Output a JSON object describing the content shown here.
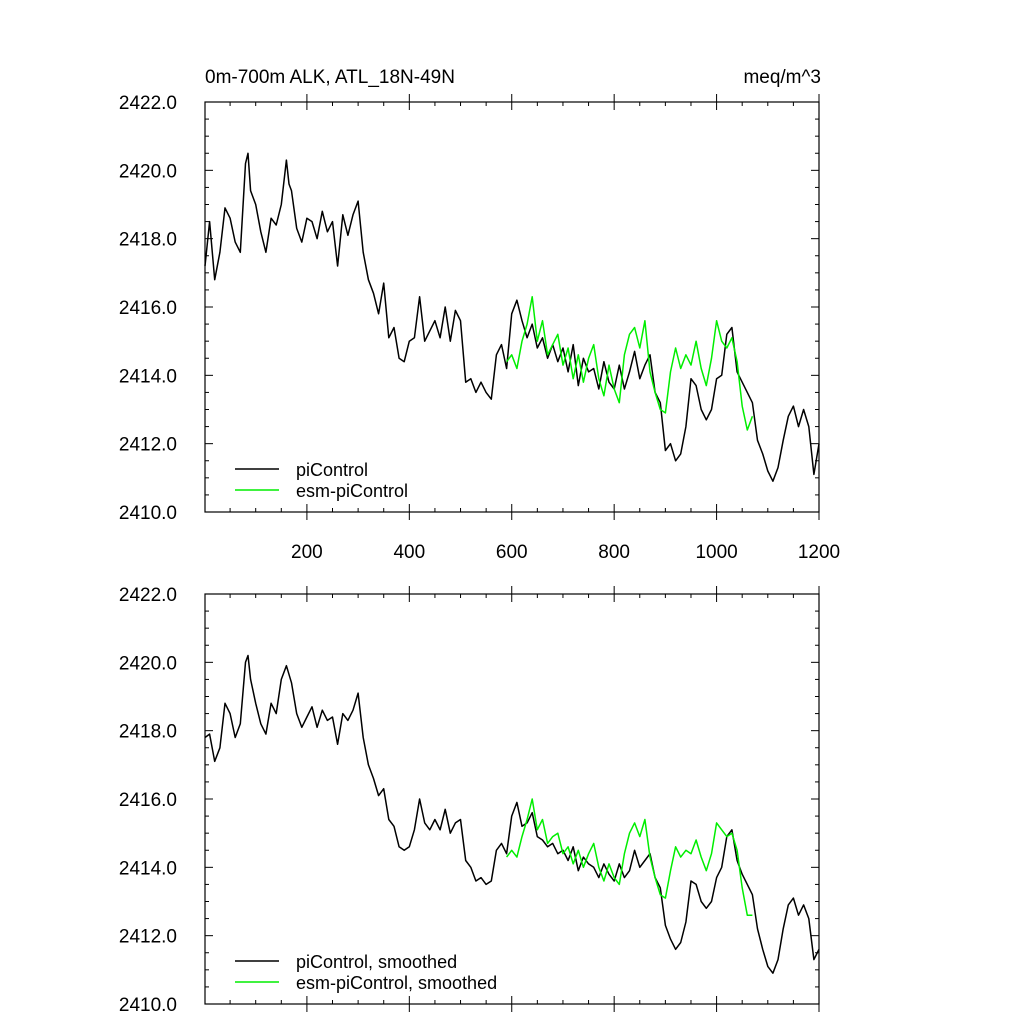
{
  "chart_data": [
    {
      "type": "line",
      "title": "0m-700m ALK, ATL_18N-49N",
      "units": "meq/m^3",
      "xlim": [
        1,
        1200
      ],
      "ylim": [
        2410,
        2422
      ],
      "x_ticks": [
        200,
        400,
        600,
        800,
        1000,
        1200
      ],
      "x_tick_labels": [
        "200",
        "400",
        "600",
        "800",
        "1000",
        "1200"
      ],
      "y_ticks": [
        2410,
        2412,
        2414,
        2416,
        2418,
        2420,
        2422
      ],
      "y_tick_labels": [
        "2410.0",
        "2412.0",
        "2414.0",
        "2416.0",
        "2418.0",
        "2420.0",
        "2422.0"
      ],
      "legend_position": "bottom-left",
      "series": [
        {
          "name": "piControl",
          "color": "#000000",
          "x": [
            1,
            10,
            20,
            30,
            40,
            50,
            60,
            70,
            75,
            80,
            85,
            90,
            100,
            110,
            120,
            130,
            140,
            150,
            160,
            165,
            170,
            180,
            190,
            200,
            210,
            220,
            230,
            240,
            250,
            260,
            270,
            280,
            290,
            300,
            310,
            320,
            330,
            340,
            350,
            360,
            370,
            380,
            390,
            400,
            410,
            420,
            430,
            440,
            450,
            460,
            470,
            480,
            490,
            500,
            510,
            520,
            530,
            540,
            550,
            560,
            570,
            580,
            590,
            600,
            610,
            620,
            630,
            640,
            650,
            660,
            670,
            680,
            690,
            700,
            710,
            720,
            730,
            740,
            750,
            760,
            770,
            780,
            790,
            800,
            810,
            820,
            830,
            840,
            850,
            860,
            870,
            880,
            890,
            900,
            910,
            920,
            930,
            940,
            950,
            960,
            970,
            980,
            990,
            1000,
            1010,
            1020,
            1030,
            1040,
            1050,
            1060,
            1070,
            1080,
            1090,
            1100,
            1110,
            1120,
            1130,
            1140,
            1150,
            1160,
            1170,
            1180,
            1190,
            1200
          ],
          "values": [
            2417.2,
            2418.5,
            2416.8,
            2417.6,
            2418.9,
            2418.6,
            2417.9,
            2417.6,
            2418.9,
            2420.2,
            2420.5,
            2419.4,
            2419.0,
            2418.2,
            2417.6,
            2418.6,
            2418.4,
            2419.0,
            2420.3,
            2419.6,
            2419.4,
            2418.3,
            2417.9,
            2418.6,
            2418.5,
            2418.0,
            2418.8,
            2418.2,
            2418.5,
            2417.2,
            2418.7,
            2418.1,
            2418.7,
            2419.1,
            2417.6,
            2416.8,
            2416.4,
            2415.8,
            2416.7,
            2415.1,
            2415.4,
            2414.5,
            2414.4,
            2415.0,
            2415.1,
            2416.3,
            2415.0,
            2415.3,
            2415.6,
            2415.1,
            2416.0,
            2415.0,
            2415.9,
            2415.6,
            2413.8,
            2413.9,
            2413.5,
            2413.8,
            2413.5,
            2413.3,
            2414.6,
            2414.9,
            2414.2,
            2415.8,
            2416.2,
            2415.6,
            2415.1,
            2415.5,
            2414.8,
            2415.1,
            2414.5,
            2414.9,
            2414.4,
            2414.8,
            2414.1,
            2414.9,
            2413.7,
            2414.5,
            2414.1,
            2414.2,
            2413.6,
            2414.4,
            2413.8,
            2413.6,
            2414.3,
            2413.6,
            2414.1,
            2414.7,
            2413.9,
            2414.3,
            2414.6,
            2413.5,
            2413.2,
            2411.8,
            2412.0,
            2411.5,
            2411.7,
            2412.5,
            2413.9,
            2413.7,
            2413.0,
            2412.7,
            2413.0,
            2413.9,
            2414.0,
            2415.2,
            2415.4,
            2414.1,
            2413.8,
            2413.5,
            2413.2,
            2412.1,
            2411.7,
            2411.2,
            2410.9,
            2411.3,
            2412.1,
            2412.8,
            2413.1,
            2412.5,
            2413.0,
            2412.5,
            2411.1,
            2412.0
          ]
        },
        {
          "name": "esm-piControl",
          "color": "#00ee00",
          "x": [
            590,
            600,
            610,
            620,
            630,
            640,
            650,
            660,
            670,
            680,
            690,
            700,
            710,
            720,
            730,
            740,
            750,
            760,
            770,
            780,
            790,
            800,
            810,
            820,
            830,
            840,
            850,
            860,
            870,
            880,
            890,
            900,
            910,
            920,
            930,
            940,
            950,
            960,
            970,
            980,
            990,
            1000,
            1010,
            1020,
            1030,
            1040,
            1050,
            1060,
            1070
          ],
          "values": [
            2414.4,
            2414.6,
            2414.2,
            2415.0,
            2415.5,
            2416.3,
            2415.0,
            2415.6,
            2414.6,
            2414.9,
            2415.2,
            2414.3,
            2414.8,
            2413.9,
            2414.6,
            2413.8,
            2414.5,
            2414.9,
            2413.9,
            2413.4,
            2414.3,
            2413.6,
            2413.2,
            2414.6,
            2415.2,
            2415.4,
            2414.8,
            2415.6,
            2414.1,
            2413.5,
            2413.0,
            2412.9,
            2414.1,
            2414.8,
            2414.2,
            2414.6,
            2414.3,
            2415.0,
            2414.2,
            2413.7,
            2414.5,
            2415.6,
            2415.0,
            2414.8,
            2415.1,
            2414.4,
            2413.1,
            2412.4,
            2412.8
          ]
        }
      ]
    },
    {
      "type": "line",
      "title": "",
      "units": "",
      "xlim": [
        1,
        1200
      ],
      "ylim": [
        2410,
        2422
      ],
      "y_ticks": [
        2410,
        2412,
        2414,
        2416,
        2418,
        2420,
        2422
      ],
      "y_tick_labels": [
        "2410.0",
        "2412.0",
        "2414.0",
        "2416.0",
        "2418.0",
        "2420.0",
        "2422.0"
      ],
      "legend_position": "bottom-left",
      "series": [
        {
          "name": "piControl, smoothed",
          "color": "#000000",
          "x": [
            1,
            10,
            20,
            30,
            40,
            50,
            60,
            70,
            80,
            85,
            90,
            100,
            110,
            120,
            130,
            140,
            150,
            160,
            170,
            180,
            190,
            200,
            210,
            220,
            230,
            240,
            250,
            260,
            270,
            280,
            290,
            300,
            310,
            320,
            330,
            340,
            350,
            360,
            370,
            380,
            390,
            400,
            410,
            420,
            430,
            440,
            450,
            460,
            470,
            480,
            490,
            500,
            510,
            520,
            530,
            540,
            550,
            560,
            570,
            580,
            590,
            600,
            610,
            620,
            630,
            640,
            650,
            660,
            670,
            680,
            690,
            700,
            710,
            720,
            730,
            740,
            750,
            760,
            770,
            780,
            790,
            800,
            810,
            820,
            830,
            840,
            850,
            860,
            870,
            880,
            890,
            900,
            910,
            920,
            930,
            940,
            950,
            960,
            970,
            980,
            990,
            1000,
            1010,
            1020,
            1030,
            1040,
            1050,
            1060,
            1070,
            1080,
            1090,
            1100,
            1110,
            1120,
            1130,
            1140,
            1150,
            1160,
            1170,
            1180,
            1190,
            1200
          ],
          "values": [
            2417.8,
            2417.9,
            2417.1,
            2417.5,
            2418.8,
            2418.5,
            2417.8,
            2418.2,
            2420.0,
            2420.2,
            2419.5,
            2418.8,
            2418.2,
            2417.9,
            2418.8,
            2418.5,
            2419.5,
            2419.9,
            2419.4,
            2418.5,
            2418.1,
            2418.4,
            2418.7,
            2418.1,
            2418.6,
            2418.3,
            2418.4,
            2417.6,
            2418.5,
            2418.3,
            2418.6,
            2419.1,
            2417.8,
            2417.0,
            2416.6,
            2416.1,
            2416.3,
            2415.4,
            2415.2,
            2414.6,
            2414.5,
            2414.6,
            2415.1,
            2416.0,
            2415.3,
            2415.1,
            2415.4,
            2415.1,
            2415.7,
            2415.0,
            2415.3,
            2415.4,
            2414.2,
            2414.0,
            2413.6,
            2413.7,
            2413.5,
            2413.6,
            2414.5,
            2414.7,
            2414.4,
            2415.5,
            2415.9,
            2415.2,
            2415.3,
            2415.6,
            2414.9,
            2414.8,
            2414.6,
            2414.7,
            2414.4,
            2414.5,
            2414.2,
            2414.6,
            2413.9,
            2414.3,
            2414.1,
            2414.0,
            2413.7,
            2414.1,
            2413.8,
            2413.6,
            2414.1,
            2413.7,
            2413.9,
            2414.5,
            2414.0,
            2414.2,
            2414.4,
            2413.7,
            2413.4,
            2412.3,
            2411.9,
            2411.6,
            2411.8,
            2412.4,
            2413.6,
            2413.5,
            2413.0,
            2412.8,
            2413.0,
            2413.7,
            2414.0,
            2414.9,
            2415.1,
            2414.2,
            2413.8,
            2413.5,
            2413.2,
            2412.2,
            2411.6,
            2411.1,
            2410.9,
            2411.3,
            2412.2,
            2412.9,
            2413.1,
            2412.6,
            2412.9,
            2412.5,
            2411.3,
            2411.6
          ]
        },
        {
          "name": "esm-piControl, smoothed",
          "color": "#00ee00",
          "x": [
            590,
            600,
            610,
            620,
            630,
            640,
            650,
            660,
            670,
            680,
            690,
            700,
            710,
            720,
            730,
            740,
            750,
            760,
            770,
            780,
            790,
            800,
            810,
            820,
            830,
            840,
            850,
            860,
            870,
            880,
            890,
            900,
            910,
            920,
            930,
            940,
            950,
            960,
            970,
            980,
            990,
            1000,
            1010,
            1020,
            1030,
            1040,
            1050,
            1060,
            1070
          ],
          "values": [
            2414.3,
            2414.5,
            2414.3,
            2414.9,
            2415.4,
            2416.0,
            2415.1,
            2415.4,
            2414.7,
            2414.9,
            2415.0,
            2414.4,
            2414.6,
            2414.1,
            2414.5,
            2414.0,
            2414.4,
            2414.7,
            2414.0,
            2413.6,
            2414.1,
            2413.7,
            2413.5,
            2414.4,
            2415.0,
            2415.3,
            2414.9,
            2415.4,
            2414.3,
            2413.7,
            2413.2,
            2413.1,
            2413.9,
            2414.6,
            2414.3,
            2414.5,
            2414.4,
            2414.8,
            2414.3,
            2413.9,
            2414.4,
            2415.3,
            2415.1,
            2414.9,
            2415.0,
            2414.5,
            2413.4,
            2412.6,
            2412.6
          ]
        }
      ]
    }
  ]
}
